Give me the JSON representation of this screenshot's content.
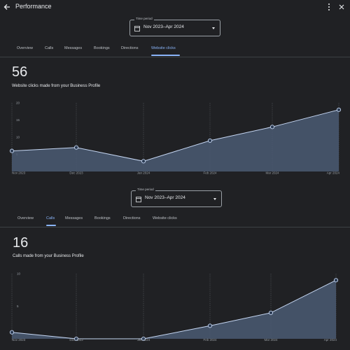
{
  "header": {
    "title": "Performance",
    "back_icon": "arrow-back-icon",
    "menu_icon": "more-vert-icon",
    "collapse_icon": "collapse-icon"
  },
  "colors": {
    "background": "#202124",
    "accent": "#8ab4f8",
    "area_fill": "#4b5b73",
    "line": "#c5d6f2",
    "grid": "#5f6368"
  },
  "sections": [
    {
      "time_period": {
        "label": "Time period",
        "value": "Nov 2023–Apr 2024"
      },
      "tabs": [
        "Overview",
        "Calls",
        "Messages",
        "Bookings",
        "Directions",
        "Website clicks"
      ],
      "active_tab": 5,
      "total": "56",
      "caption": "Website clicks made from your Business Profile"
    },
    {
      "time_period": {
        "label": "Time period",
        "value": "Nov 2023–Apr 2024"
      },
      "tabs": [
        "Overview",
        "Calls",
        "Messages",
        "Bookings",
        "Directions",
        "Website clicks"
      ],
      "active_tab": 1,
      "total": "16",
      "caption": "Calls made from your Business Profile"
    }
  ],
  "chart_data": [
    {
      "type": "area",
      "x": [
        "Nov 2023",
        "Dec 2023",
        "Jan 2024",
        "Feb 2024",
        "Mar 2024",
        "Apr 2024"
      ],
      "y_ticks": [
        "20",
        "15",
        "10",
        "5"
      ],
      "ylim": [
        0,
        20
      ],
      "series": [
        {
          "values": [
            6,
            7,
            3,
            9,
            13,
            18
          ]
        }
      ],
      "grid": "dotted-vertical"
    },
    {
      "type": "area",
      "x": [
        "Nov 2023",
        "Dec 2023",
        "Jan 2024",
        "Feb 2024",
        "Mar 2024",
        "Apr 2024"
      ],
      "y_ticks": [
        "10",
        "5"
      ],
      "ylim": [
        0,
        10
      ],
      "series": [
        {
          "values": [
            1,
            0,
            0,
            2,
            4,
            9
          ]
        }
      ],
      "grid": "dotted-vertical"
    }
  ]
}
